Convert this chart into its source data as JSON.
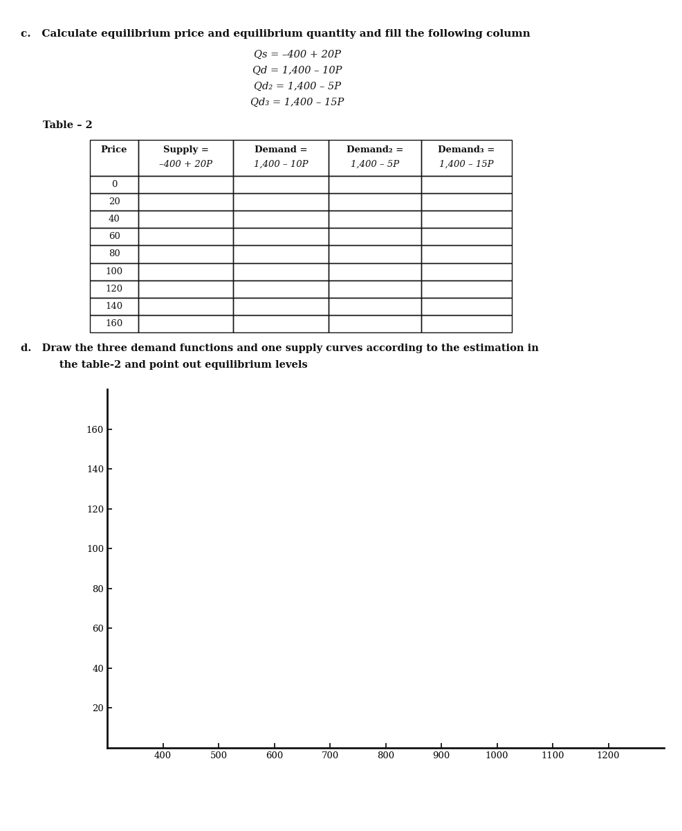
{
  "title_c": "c.   Calculate equilibrium price and equilibrium quantity and fill the following column",
  "equations": [
    "Qs = –400 + 20P",
    "Qd = 1,400 – 10P",
    "Qd₂ = 1,400 – 5P",
    "Qd₃ = 1,400 – 15P"
  ],
  "table_title": "Table – 2",
  "col_headers_line1": [
    "Price",
    "Supply =",
    "Demand =",
    "Demand₂ =",
    "Demand₃ ="
  ],
  "col_headers_line2": [
    "",
    "–400 + 20P",
    "1,400 – 10P",
    "1,400 – 5P",
    "1,400 – 15P"
  ],
  "price_rows": [
    0,
    20,
    40,
    60,
    80,
    100,
    120,
    140,
    160
  ],
  "title_d_line1": "d.   Draw the three demand functions and one supply curves according to the estimation in",
  "title_d_line2": "      the table-2 and point out equilibrium levels",
  "chart_xlim": [
    300,
    1300
  ],
  "chart_ylim": [
    0,
    180
  ],
  "chart_xticks": [
    400,
    500,
    600,
    700,
    800,
    900,
    1000,
    1100,
    1200
  ],
  "chart_yticks": [
    20,
    40,
    60,
    80,
    100,
    120,
    140,
    160
  ],
  "background_color": "#ffffff",
  "text_color": "#111111",
  "table_line_color": "#111111"
}
